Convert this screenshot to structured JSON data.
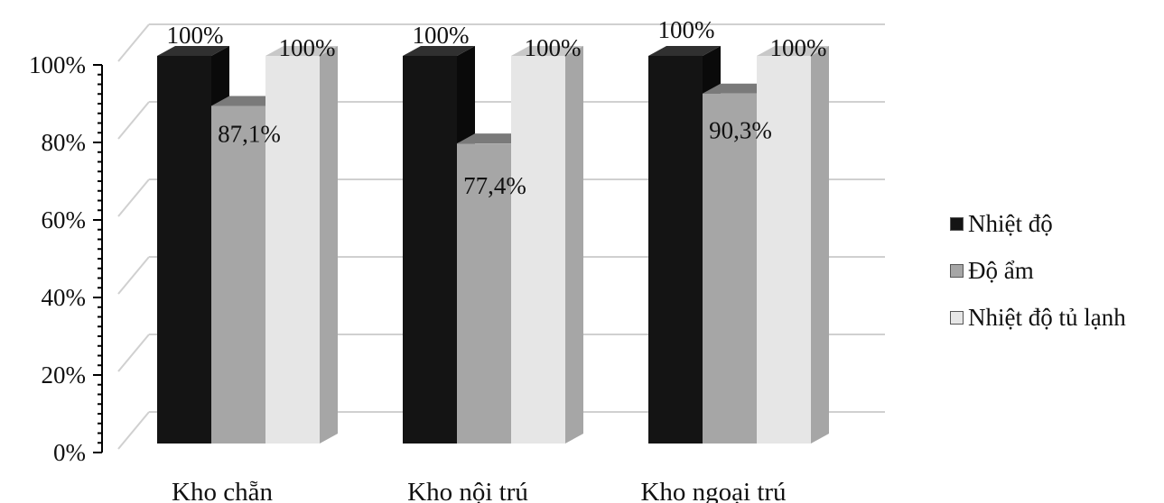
{
  "chart_data": {
    "type": "bar",
    "categories": [
      "Kho chẵn",
      "Kho nội trú",
      "Kho ngoại trú"
    ],
    "series": [
      {
        "name": "Nhiệt độ",
        "color": "#141414",
        "values": [
          100,
          100,
          100
        ],
        "labels": [
          "100%",
          "100%",
          "100%"
        ]
      },
      {
        "name": "Độ ẩm",
        "color": "#a6a6a6",
        "values": [
          87.1,
          77.4,
          90.3
        ],
        "labels": [
          "87,1%",
          "77,4%",
          "90,3%"
        ]
      },
      {
        "name": "Nhiệt độ tủ lạnh",
        "color": "#e6e6e6",
        "values": [
          100,
          100,
          100
        ],
        "labels": [
          "100%",
          "100%",
          "100%"
        ]
      }
    ],
    "y_ticks": [
      "0%",
      "20%",
      "40%",
      "60%",
      "80%",
      "100%"
    ],
    "ylim": [
      0,
      100
    ],
    "grid": true,
    "legend_position": "right",
    "style": "3d-clustered-column"
  }
}
